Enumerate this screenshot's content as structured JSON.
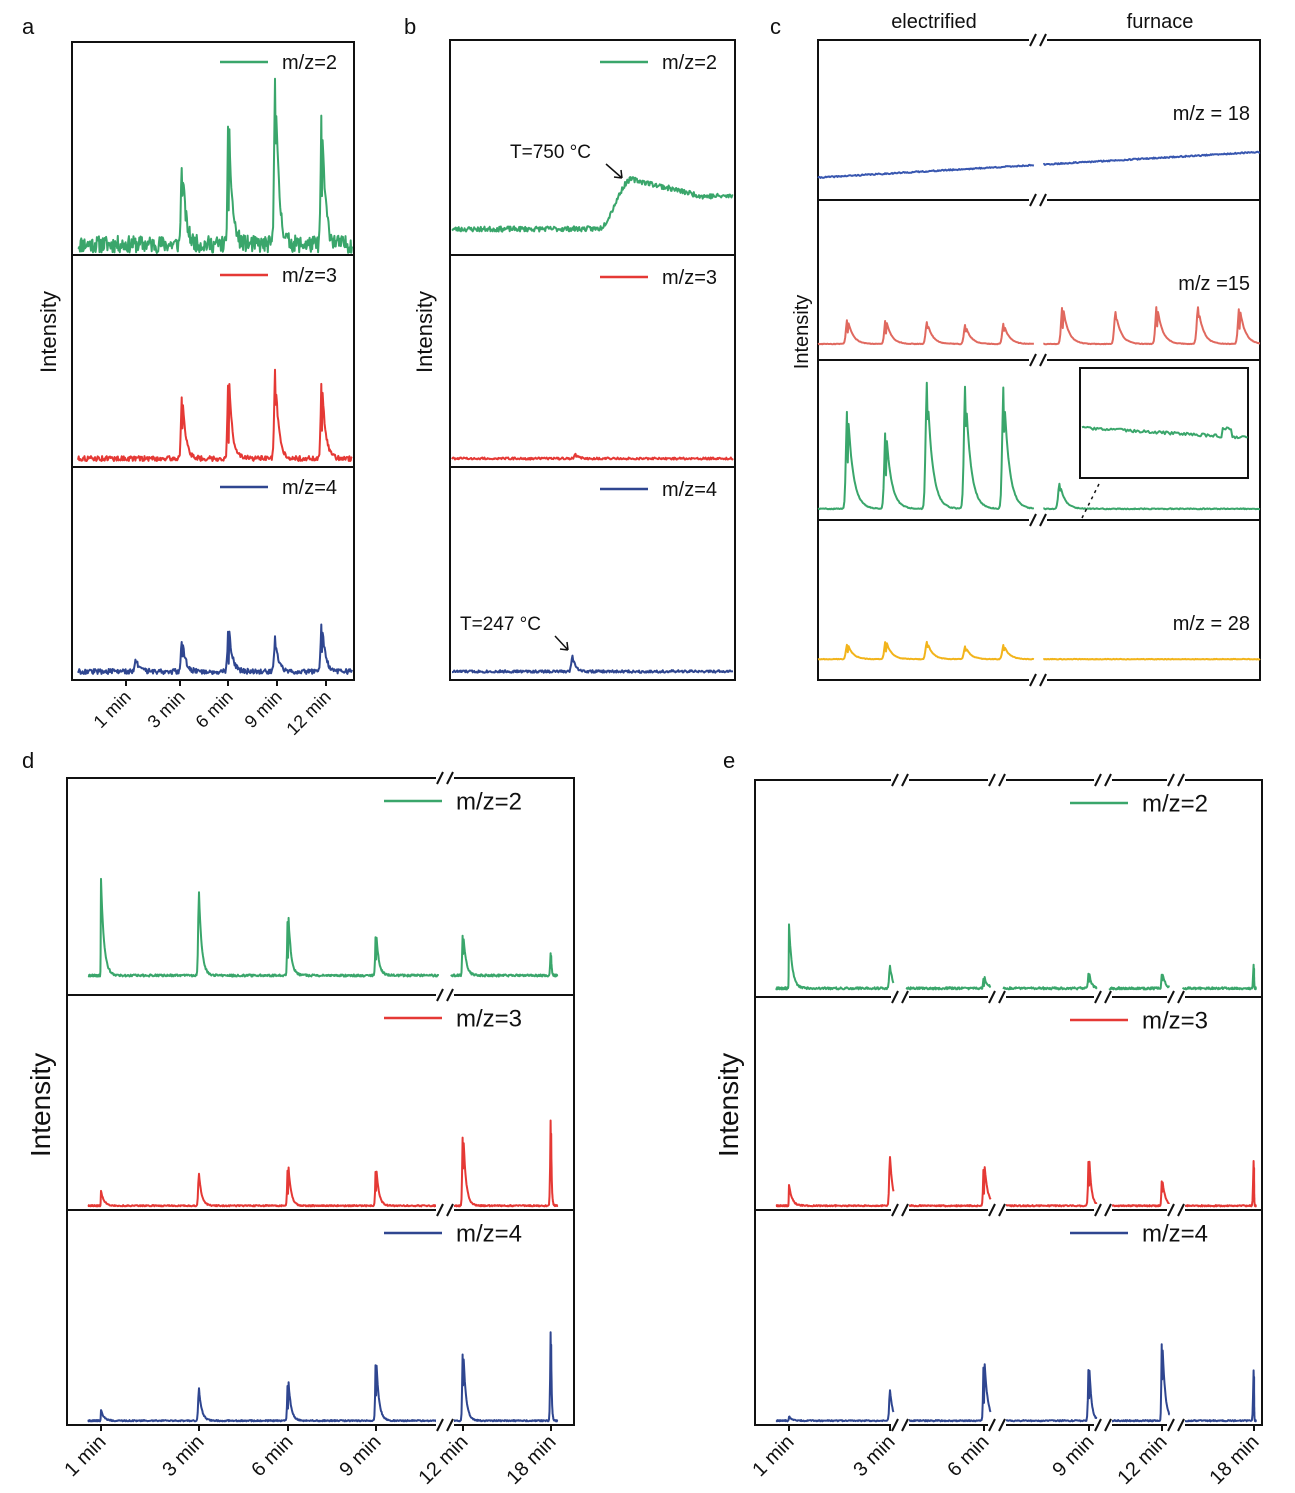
{
  "colors": {
    "green": "#3aa66b",
    "red": "#e53935",
    "navy": "#2f4690",
    "blue": "#3857b0",
    "salmon": "#e0695f",
    "yellow": "#f2b41b"
  },
  "chart_data": [
    {
      "panel": "a",
      "type": "line",
      "ylabel": "Intensity",
      "x_ticks": [
        "1 min",
        "3 min",
        "6 min",
        "9 min",
        "12 min"
      ],
      "grid": false,
      "legend_position": "top-right",
      "series": [
        {
          "name": "m/z=2",
          "color": "green",
          "baseline": 0.05,
          "noise": 0.04,
          "peaks": [
            {
              "x": 0.38,
              "h": 0.42
            },
            {
              "x": 0.55,
              "h": 0.62
            },
            {
              "x": 0.72,
              "h": 0.84
            },
            {
              "x": 0.89,
              "h": 0.64
            }
          ]
        },
        {
          "name": "m/z=3",
          "color": "red",
          "baseline": 0.04,
          "noise": 0.012,
          "peaks": [
            {
              "x": 0.38,
              "h": 0.32
            },
            {
              "x": 0.55,
              "h": 0.42
            },
            {
              "x": 0.72,
              "h": 0.42
            },
            {
              "x": 0.89,
              "h": 0.4
            }
          ]
        },
        {
          "name": "m/z=4",
          "color": "navy",
          "baseline": 0.04,
          "noise": 0.012,
          "peaks": [
            {
              "x": 0.21,
              "h": 0.06
            },
            {
              "x": 0.38,
              "h": 0.16
            },
            {
              "x": 0.55,
              "h": 0.22
            },
            {
              "x": 0.72,
              "h": 0.16
            },
            {
              "x": 0.89,
              "h": 0.24
            }
          ]
        }
      ]
    },
    {
      "panel": "b",
      "type": "line",
      "ylabel": "Intensity",
      "grid": false,
      "legend_position": "top-right",
      "annotations": [
        "T=750 °C",
        "T=247 °C"
      ],
      "series": [
        {
          "name": "m/z=2",
          "color": "green",
          "shape": "step",
          "baseline": 0.12,
          "rise_start": 0.52,
          "rise_end": 0.64,
          "plateau": 0.35,
          "end_level": 0.27,
          "noise": 0.012
        },
        {
          "name": "m/z=3",
          "color": "red",
          "baseline": 0.04,
          "noise": 0.005,
          "peaks": [
            {
              "x": 0.44,
              "h": 0.02
            }
          ]
        },
        {
          "name": "m/z=4",
          "color": "navy",
          "baseline": 0.04,
          "noise": 0.006,
          "peaks": [
            {
              "x": 0.43,
              "h": 0.08
            }
          ]
        }
      ]
    },
    {
      "panel": "c",
      "type": "line",
      "ylabel": "Intensity",
      "grid": false,
      "column_labels": [
        "electrified",
        "furnace"
      ],
      "series": [
        {
          "name": "m/z = 18",
          "color": "blue",
          "shape": "drift",
          "start": 0.14,
          "end": 0.3,
          "noise": 0.004
        },
        {
          "name": "m/z =15",
          "color": "salmon",
          "baseline": 0.1,
          "noise": 0.002,
          "peaks": [
            {
              "x": 0.1,
              "h": 0.16
            },
            {
              "x": 0.23,
              "h": 0.16
            },
            {
              "x": 0.37,
              "h": 0.14
            },
            {
              "x": 0.5,
              "h": 0.12
            },
            {
              "x": 0.63,
              "h": 0.13
            },
            {
              "x": 0.83,
              "h": 0.25
            },
            {
              "x": 1.01,
              "h": 0.2
            },
            {
              "x": 1.15,
              "h": 0.25
            },
            {
              "x": 1.29,
              "h": 0.23
            },
            {
              "x": 1.43,
              "h": 0.24
            }
          ]
        },
        {
          "name": "m/z = 2",
          "color": "green",
          "baseline": 0.07,
          "noise": 0.003,
          "peaks": [
            {
              "x": 0.1,
              "h": 0.66
            },
            {
              "x": 0.23,
              "h": 0.52
            },
            {
              "x": 0.37,
              "h": 0.8
            },
            {
              "x": 0.5,
              "h": 0.78
            },
            {
              "x": 0.63,
              "h": 0.78
            },
            {
              "x": 0.82,
              "h": 0.16
            }
          ]
        },
        {
          "name": "m/z = 28",
          "color": "yellow",
          "baseline": 0.13,
          "noise": 0.002,
          "peaks": [
            {
              "x": 0.1,
              "h": 0.1
            },
            {
              "x": 0.23,
              "h": 0.12
            },
            {
              "x": 0.37,
              "h": 0.11
            },
            {
              "x": 0.5,
              "h": 0.08
            },
            {
              "x": 0.63,
              "h": 0.09
            }
          ]
        }
      ]
    },
    {
      "panel": "d",
      "type": "line",
      "ylabel": "Intensity",
      "x_ticks": [
        "1 min",
        "3 min",
        "6 min",
        "9 min",
        "12 min",
        "18 min"
      ],
      "grid": false,
      "legend_position": "top-right",
      "series": [
        {
          "name": "m/z=2",
          "color": "green",
          "baseline": 0.09,
          "noise": 0.005,
          "peaks": [
            {
              "x": 1,
              "h": 0.45
            },
            {
              "x": 2,
              "h": 0.38
            },
            {
              "x": 3,
              "h": 0.33
            },
            {
              "x": 4,
              "h": 0.22
            },
            {
              "x": 5,
              "h": 0.22
            },
            {
              "x": 6,
              "h": 0.12
            }
          ]
        },
        {
          "name": "m/z=3",
          "color": "red",
          "baseline": 0.02,
          "noise": 0.003,
          "peaks": [
            {
              "x": 1,
              "h": 0.07
            },
            {
              "x": 2,
              "h": 0.15
            },
            {
              "x": 3,
              "h": 0.22
            },
            {
              "x": 4,
              "h": 0.2
            },
            {
              "x": 5,
              "h": 0.38
            },
            {
              "x": 6,
              "h": 0.45
            }
          ]
        },
        {
          "name": "m/z=4",
          "color": "navy",
          "baseline": 0.02,
          "noise": 0.003,
          "peaks": [
            {
              "x": 1,
              "h": 0.05
            },
            {
              "x": 2,
              "h": 0.15
            },
            {
              "x": 3,
              "h": 0.22
            },
            {
              "x": 4,
              "h": 0.33
            },
            {
              "x": 5,
              "h": 0.37
            },
            {
              "x": 6,
              "h": 0.47
            }
          ]
        }
      ]
    },
    {
      "panel": "e",
      "type": "line",
      "ylabel": "Intensity",
      "x_ticks": [
        "1 min",
        "3 min",
        "6 min",
        "9 min",
        "12 min",
        "18 min"
      ],
      "grid": false,
      "legend_position": "top-right",
      "series": [
        {
          "name": "m/z=2",
          "color": "green",
          "baseline": 0.04,
          "noise": 0.005,
          "peaks": [
            {
              "x": 1,
              "h": 0.3
            },
            {
              "x": 2,
              "h": 0.1
            },
            {
              "x": 3,
              "h": 0.06
            },
            {
              "x": 4,
              "h": 0.08
            },
            {
              "x": 5,
              "h": 0.08
            },
            {
              "x": 6,
              "h": 0.12
            }
          ]
        },
        {
          "name": "m/z=3",
          "color": "red",
          "baseline": 0.02,
          "noise": 0.003,
          "peaks": [
            {
              "x": 1,
              "h": 0.1
            },
            {
              "x": 2,
              "h": 0.23
            },
            {
              "x": 3,
              "h": 0.23
            },
            {
              "x": 4,
              "h": 0.26
            },
            {
              "x": 5,
              "h": 0.14
            },
            {
              "x": 6,
              "h": 0.24
            }
          ]
        },
        {
          "name": "m/z=4",
          "color": "navy",
          "baseline": 0.02,
          "noise": 0.003,
          "peaks": [
            {
              "x": 1,
              "h": 0.02
            },
            {
              "x": 2,
              "h": 0.14
            },
            {
              "x": 3,
              "h": 0.33
            },
            {
              "x": 4,
              "h": 0.3
            },
            {
              "x": 5,
              "h": 0.43
            },
            {
              "x": 6,
              "h": 0.27
            }
          ]
        }
      ]
    }
  ],
  "panels": {
    "a": {
      "letter": "a"
    },
    "b": {
      "letter": "b"
    },
    "c": {
      "letter": "c"
    },
    "d": {
      "letter": "d"
    },
    "e": {
      "letter": "e"
    }
  }
}
